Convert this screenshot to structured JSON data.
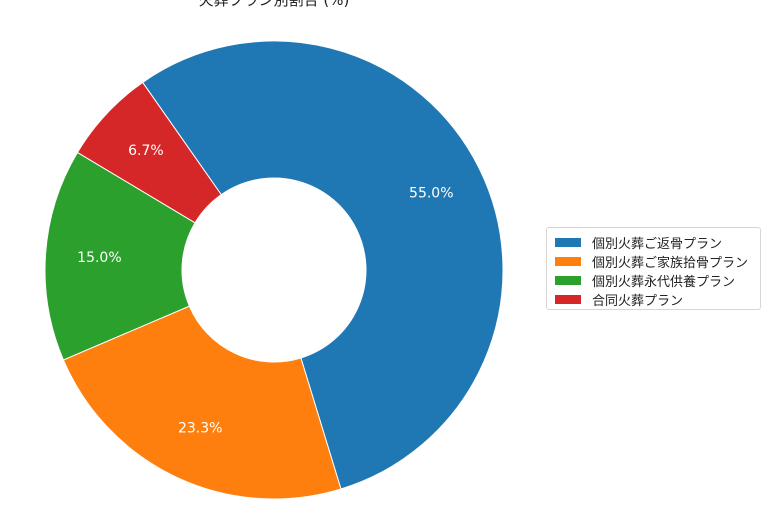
{
  "chart_data": {
    "type": "pie",
    "title": "火葬プラン別割合 (%)",
    "categories": [
      "個別火葬ご返骨プラン",
      "個別火葬ご家族拾骨プラン",
      "個別火葬永代供養プラン",
      "合同火葬プラン"
    ],
    "values": [
      55.0,
      23.3,
      15.0,
      6.7
    ],
    "value_labels": [
      "55.0%",
      "23.3%",
      "15.0%",
      "6.7%"
    ],
    "colors": [
      "#1f77b4",
      "#ff7f0e",
      "#2ca02c",
      "#d62728"
    ],
    "donut": true,
    "legend": "right"
  }
}
